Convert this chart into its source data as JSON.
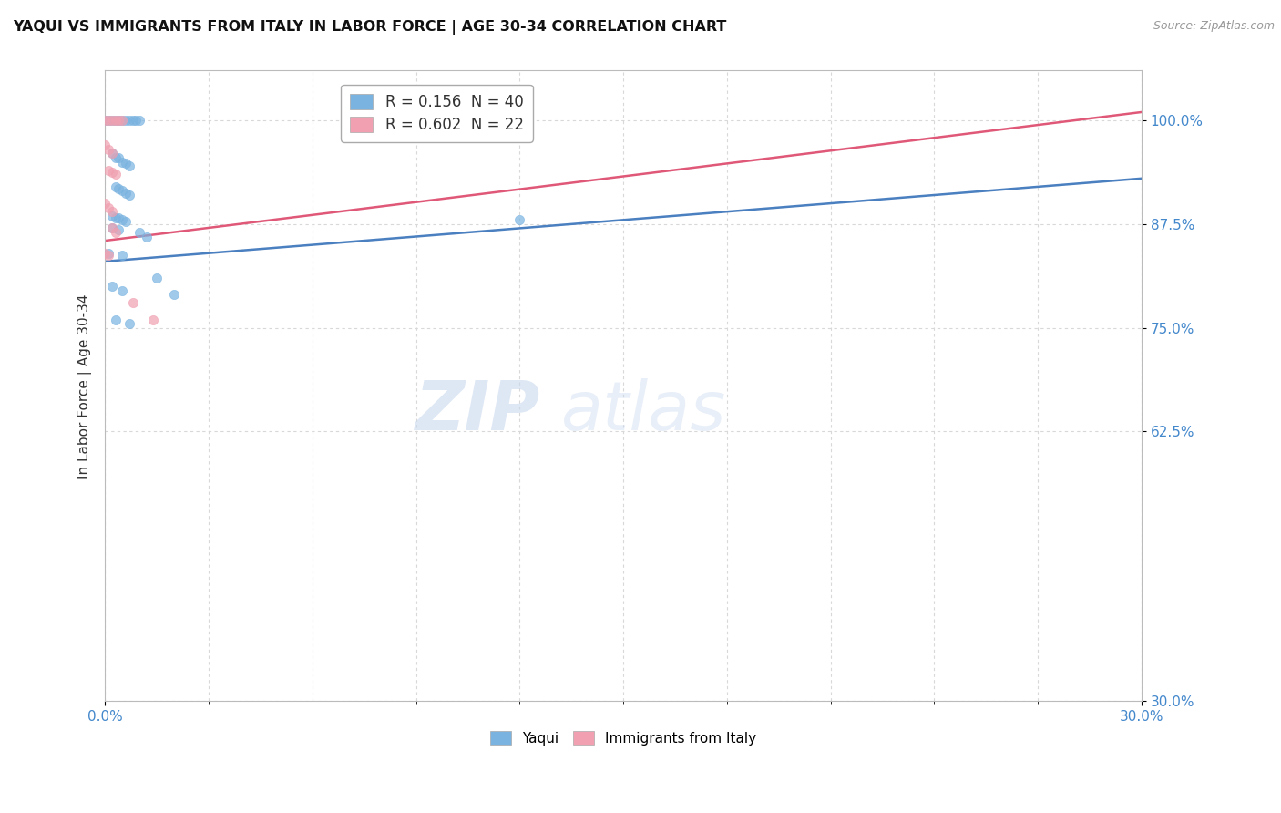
{
  "title": "YAQUI VS IMMIGRANTS FROM ITALY IN LABOR FORCE | AGE 30-34 CORRELATION CHART",
  "source": "Source: ZipAtlas.com",
  "ylabel_label": "In Labor Force | Age 30-34",
  "legend_entries": [
    {
      "label": "R = 0.156  N = 40",
      "color": "#a8c8f0"
    },
    {
      "label": "R = 0.602  N = 22",
      "color": "#f0a8b8"
    }
  ],
  "yaqui_scatter": [
    [
      0.0,
      1.0
    ],
    [
      0.001,
      1.0
    ],
    [
      0.002,
      1.0
    ],
    [
      0.003,
      1.0
    ],
    [
      0.004,
      1.0
    ],
    [
      0.005,
      1.0
    ],
    [
      0.006,
      1.0
    ],
    [
      0.007,
      1.0
    ],
    [
      0.008,
      1.0
    ],
    [
      0.009,
      1.0
    ],
    [
      0.01,
      1.0
    ],
    [
      0.002,
      0.96
    ],
    [
      0.003,
      0.955
    ],
    [
      0.004,
      0.955
    ],
    [
      0.005,
      0.95
    ],
    [
      0.006,
      0.948
    ],
    [
      0.007,
      0.945
    ],
    [
      0.003,
      0.92
    ],
    [
      0.004,
      0.918
    ],
    [
      0.005,
      0.915
    ],
    [
      0.006,
      0.912
    ],
    [
      0.007,
      0.91
    ],
    [
      0.002,
      0.885
    ],
    [
      0.003,
      0.883
    ],
    [
      0.004,
      0.882
    ],
    [
      0.005,
      0.88
    ],
    [
      0.006,
      0.878
    ],
    [
      0.002,
      0.87
    ],
    [
      0.004,
      0.868
    ],
    [
      0.01,
      0.865
    ],
    [
      0.012,
      0.86
    ],
    [
      0.001,
      0.84
    ],
    [
      0.005,
      0.838
    ],
    [
      0.002,
      0.8
    ],
    [
      0.005,
      0.795
    ],
    [
      0.015,
      0.81
    ],
    [
      0.02,
      0.79
    ],
    [
      0.003,
      0.76
    ],
    [
      0.007,
      0.755
    ],
    [
      0.12,
      0.88
    ]
  ],
  "italy_scatter": [
    [
      0.0,
      1.0
    ],
    [
      0.001,
      1.0
    ],
    [
      0.002,
      1.0
    ],
    [
      0.003,
      1.0
    ],
    [
      0.004,
      1.0
    ],
    [
      0.005,
      1.0
    ],
    [
      0.0,
      0.97
    ],
    [
      0.001,
      0.965
    ],
    [
      0.002,
      0.96
    ],
    [
      0.001,
      0.94
    ],
    [
      0.002,
      0.938
    ],
    [
      0.003,
      0.935
    ],
    [
      0.0,
      0.9
    ],
    [
      0.001,
      0.895
    ],
    [
      0.002,
      0.89
    ],
    [
      0.002,
      0.87
    ],
    [
      0.003,
      0.865
    ],
    [
      0.0,
      0.84
    ],
    [
      0.001,
      0.838
    ],
    [
      0.008,
      0.78
    ],
    [
      0.014,
      0.76
    ],
    [
      0.11,
      0.99
    ]
  ],
  "yaqui_line_x": [
    0.0,
    0.3
  ],
  "yaqui_line_y": [
    0.83,
    0.93
  ],
  "italy_line_x": [
    0.0,
    0.3
  ],
  "italy_line_y": [
    0.855,
    1.01
  ],
  "xmin": 0.0,
  "xmax": 0.3,
  "ymin": 0.3,
  "ymax": 1.06,
  "yticks": [
    1.0,
    0.875,
    0.75,
    0.625,
    0.3
  ],
  "ytick_labels": [
    "100.0%",
    "87.5%",
    "75.0%",
    "62.5%",
    "30.0%"
  ],
  "bg_color": "#ffffff",
  "yaqui_color": "#7ab3e0",
  "italy_color": "#f0a0b0",
  "yaqui_line_color": "#4a7fc0",
  "italy_line_color": "#e05878",
  "grid_color": "#d8d8d8",
  "dot_size": 55
}
